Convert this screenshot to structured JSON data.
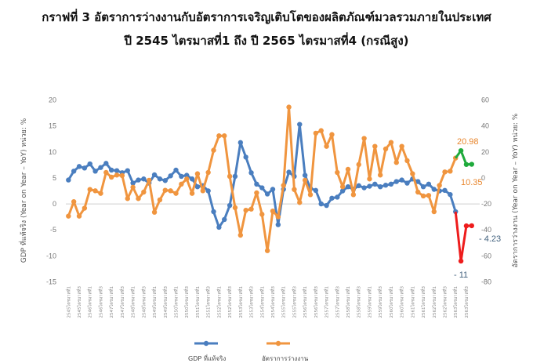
{
  "title_line1": "กราฟที่ 3 อัตราการว่างงานกับอัตราการเจริญเติบโตของผลิตภัณฑ์มวลรวมภายในประเทศ",
  "title_line2": "ปี 2545 ไตรมาสที่1 ถึง ปี 2565 ไตรมาสที่4 (กรณีสูง)",
  "chart_data": {
    "type": "line",
    "ylabel_left": "GDP ที่แท้จริง (Year on Year – YoY) หน่วย: %",
    "ylabel_right": "อัตราการว่างงาน (Year on Year – YoY) หน่วย: %",
    "ylim_left": [
      -15,
      20
    ],
    "yticks_left": [
      20,
      15,
      10,
      5,
      0,
      -5,
      -10,
      -15
    ],
    "ylim_right": [
      -80,
      60
    ],
    "yticks_right": [
      60,
      40,
      20,
      0,
      -20,
      -40,
      -60,
      -80
    ],
    "x_tick_labels": [
      "2545ไตรมาสที่1",
      "2545ไตรมาสที่3",
      "2546ไตรมาสที่1",
      "2546ไตรมาสที่3",
      "2547ไตรมาสที่1",
      "2547ไตรมาสที่3",
      "2548ไตรมาสที่1",
      "2548ไตรมาสที่3",
      "2549ไตรมาสที่1",
      "2549ไตรมาสที่3",
      "2550ไตรมาสที่1",
      "2550ไตรมาสที่3",
      "2551ไตรมาสที่1",
      "2551ไตรมาสที่3",
      "2552ไตรมาสที่1",
      "2552ไตรมาสที่3",
      "2553ไตรมาสที่1",
      "2553ไตรมาสที่3",
      "2554ไตรมาสที่1",
      "2554ไตรมาสที่3",
      "2555ไตรมาสที่1",
      "2555ไตรมาสที่3",
      "2556ไตรมาสที่1",
      "2556ไตรมาสที่3",
      "2557ไตรมาสที่1",
      "2557ไตรมาสที่3",
      "2558ไตรมาสที่1",
      "2558ไตรมาสที่3",
      "2559ไตรมาสที่1",
      "2559ไตรมาสที่3",
      "2560ไตรมาสที่1",
      "2560ไตรมาสที่3",
      "2561ไตรมาสที่1",
      "2561ไตรมาสที่3",
      "2562ไตรมาสที่1",
      "2562ไตรมาสที่3",
      "2563ไตรมาสที่1",
      "2563ไตรมาสที่3"
    ],
    "grid": false,
    "legend_placement": "bottom",
    "series": [
      {
        "name": "GDP ที่แท้จริง",
        "axis": "left",
        "color": "#4a7ebf",
        "values": [
          4.6,
          6.3,
          7.2,
          6.9,
          7.7,
          6.3,
          7.0,
          7.8,
          6.5,
          6.4,
          6.0,
          6.4,
          4.0,
          4.6,
          4.8,
          4.0,
          5.6,
          4.8,
          4.5,
          5.4,
          6.5,
          5.3,
          5.5,
          4.8,
          3.3,
          3.5,
          2.5,
          -1.5,
          -4.5,
          -3.0,
          -0.3,
          5.3,
          11.8,
          9.0,
          6.0,
          3.8,
          3.1,
          1.9,
          2.8,
          -4.0,
          2.8,
          6.1,
          5.3,
          15.3,
          5.5,
          3.0,
          2.6,
          0,
          -0.3,
          1.1,
          1.3,
          2.5,
          3.3,
          2.8,
          3.5,
          3.1,
          3.4,
          3.8,
          3.3,
          3.6,
          3.8,
          4.3,
          4.6,
          4.0,
          4.8,
          4.3,
          3.3,
          3.8,
          2.8,
          2.5,
          2.6,
          1.8,
          -1.5
        ]
      },
      {
        "name": "อัตราการว่างงาน",
        "axis": "right",
        "color": "#f0953f",
        "values": [
          -29.4,
          -18.3,
          -29.4,
          -23.3,
          -8.9,
          -9.9,
          -11.9,
          4.2,
          0.6,
          2.2,
          1.8,
          -15.9,
          -7.2,
          -15.9,
          -10.9,
          -1.8,
          -26.4,
          -16.9,
          -9.5,
          -9.9,
          -11.9,
          -4.8,
          -0.8,
          -11.9,
          3.2,
          -9.9,
          4.2,
          21.3,
          32.4,
          32.4,
          1.2,
          -22.9,
          -44.1,
          -24.9,
          -24.0,
          -11.5,
          -28,
          -56,
          -25.5,
          -30,
          -5.8,
          54.5,
          -8.9,
          -18.9,
          -1.8,
          -12.9,
          34.4,
          36.4,
          24.3,
          33.4,
          4.2,
          -6.8,
          6.6,
          -12.9,
          10.3,
          30.4,
          -0.8,
          24.3,
          2.2,
          22.3,
          27.3,
          11.9,
          24.3,
          13.3,
          3.2,
          -10.9,
          -13.9,
          -13.5,
          -26,
          -5.8,
          4.6,
          5.2,
          15.3
        ]
      },
      {
        "axis": "left",
        "color": "#ee1c1c",
        "start_index": 73,
        "values": [
          -11,
          -4.23,
          -4.2
        ]
      },
      {
        "axis": "right",
        "color": "#1faa3c",
        "start_index": 73,
        "values": [
          20.98,
          10.35,
          10.5
        ]
      }
    ],
    "annotations": [
      {
        "text": "20.98",
        "color": "#e8872f"
      },
      {
        "text": "10.35",
        "color": "#e8872f"
      },
      {
        "text": "- 4.23",
        "color": "#44637f"
      },
      {
        "text": "- 11",
        "color": "#44637f"
      }
    ]
  }
}
